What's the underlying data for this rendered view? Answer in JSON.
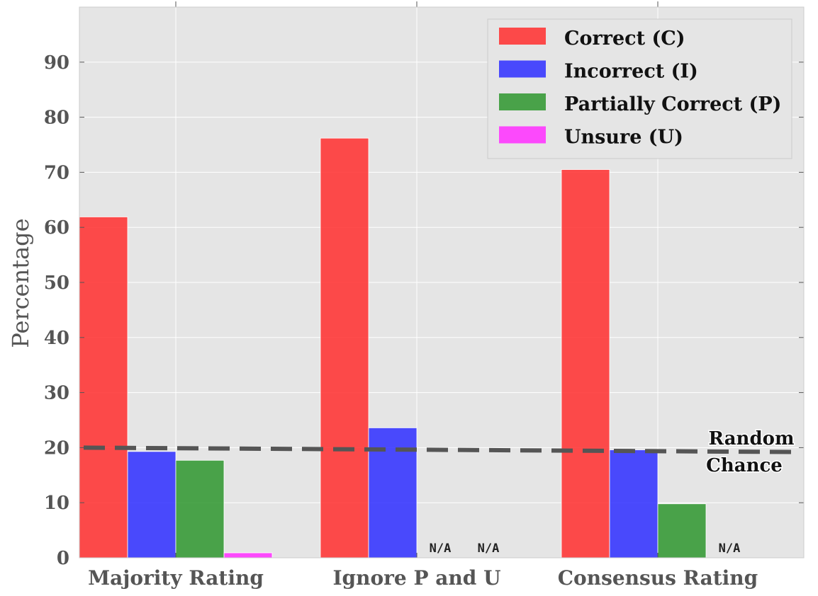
{
  "chart_data": {
    "type": "bar",
    "title": "",
    "xlabel": "",
    "ylabel": "Percentage",
    "ylim": [
      0,
      100
    ],
    "yticks": [
      0,
      10,
      20,
      30,
      40,
      50,
      60,
      70,
      80,
      90
    ],
    "categories": [
      "Majority Rating",
      "Ignore P and U",
      "Consensus Rating"
    ],
    "series": [
      {
        "name": "Correct (C)",
        "color": "#ff3333",
        "values": [
          61.9,
          76.2,
          70.5
        ]
      },
      {
        "name": "Incorrect (I)",
        "color": "#3333ff",
        "values": [
          19.3,
          23.6,
          19.6
        ]
      },
      {
        "name": "Partially Correct (P)",
        "color": "#339933",
        "values": [
          17.7,
          null,
          9.8
        ]
      },
      {
        "name": "Unsure (U)",
        "color": "#ff33ff",
        "values": [
          0.9,
          null,
          null
        ]
      }
    ],
    "missing_label": "N/A",
    "reference_line": {
      "value": 19.6,
      "label_line1": "Random",
      "label_line2": "Chance",
      "color": "#555555"
    },
    "grid": true,
    "legend_position": "top-right"
  }
}
